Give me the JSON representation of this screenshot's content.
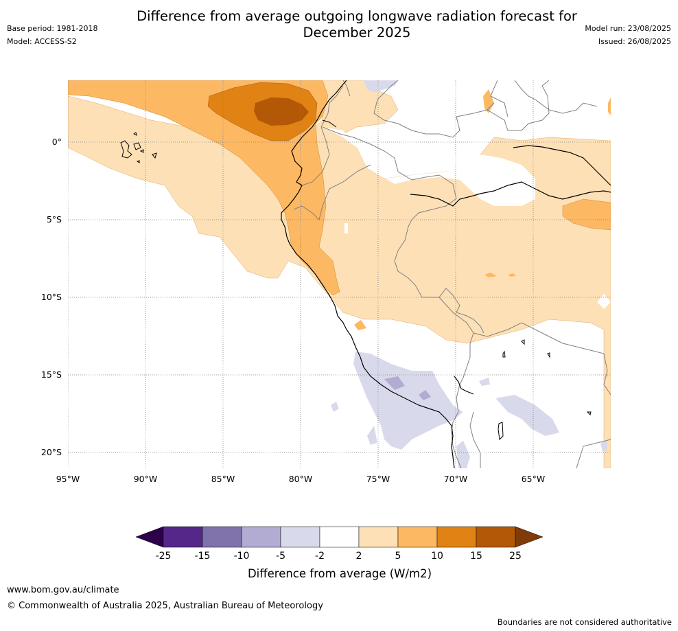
{
  "header": {
    "title_line1": "Difference from average outgoing longwave radiation forecast for",
    "title_line2": "December 2025",
    "base_period": "Base period: 1981-2018",
    "model": "Model: ACCESS-S2",
    "model_run": "Model run: 23/08/2025",
    "issued": "Issued: 26/08/2025"
  },
  "map": {
    "region": "Western South America",
    "latitude_labels": [
      "0°",
      "5°S",
      "10°S",
      "15°S",
      "20°S"
    ],
    "longitude_labels": [
      "95°W",
      "90°W",
      "85°W",
      "80°W",
      "75°W",
      "70°W",
      "65°W"
    ],
    "colors": {
      "ocean": "#ffffff",
      "coast": "#000000",
      "border": "#808080",
      "grid": "#808080"
    }
  },
  "legend": {
    "label": "Difference from average (W/m2)",
    "ticks": [
      "-25",
      "-15",
      "-10",
      "-5",
      "-2",
      "2",
      "5",
      "10",
      "15",
      "25"
    ],
    "colors": {
      "below_min": "#2d004b",
      "n25_n15": "#542788",
      "n15_n10": "#8073ac",
      "n10_n5": "#b2abd2",
      "n5_n2": "#d8daeb",
      "n2_2": "#ffffff",
      "p2_5": "#fee0b6",
      "p5_10": "#fdb863",
      "p10_15": "#e08214",
      "p15_25": "#b35806",
      "above_max": "#7f3b08"
    }
  },
  "footer": {
    "url": "www.bom.gov.au/climate",
    "copyright": "© Commonwealth of Australia 2025, Australian Bureau of Meteorology",
    "disclaimer": "Boundaries are not considered authoritative"
  }
}
